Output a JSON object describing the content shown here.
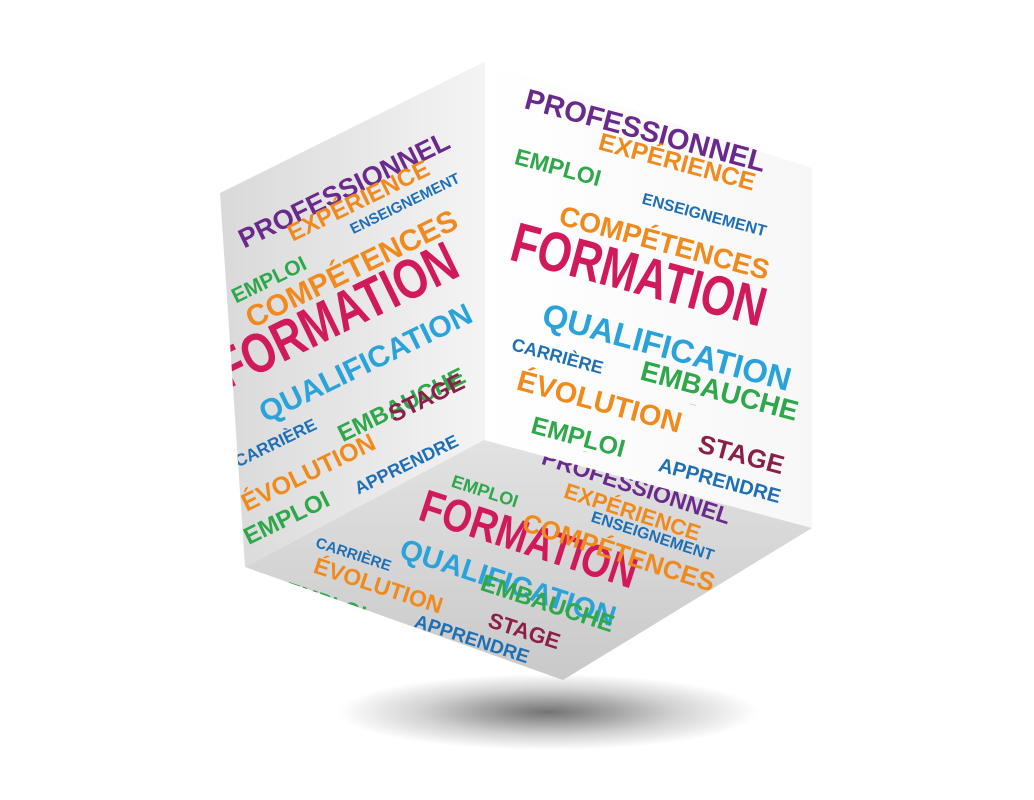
{
  "cube": {
    "colors": {
      "purple": "#6a2a8c",
      "orange": "#f08a1d",
      "green": "#2ea84a",
      "blue": "#1f6fb5",
      "magenta": "#d11a5b",
      "cyan": "#2aa3db",
      "maroon": "#8a1f4a"
    },
    "left_face": [
      {
        "text": "PROFESSIONNEL",
        "color": "purple"
      },
      {
        "text": "EXPÉRIENCE",
        "color": "orange"
      },
      {
        "text": "EMPLOI",
        "color": "green"
      },
      {
        "text": "ENSEIGNEMENT",
        "color": "blue"
      },
      {
        "text": "COMPÉTENCES",
        "color": "orange"
      },
      {
        "text": "FORMATION",
        "color": "magenta"
      },
      {
        "text": "QUALIFICATION",
        "color": "cyan"
      },
      {
        "text": "EMBAUCHE",
        "color": "green"
      },
      {
        "text": "CARRIÈRE",
        "color": "blue"
      },
      {
        "text": "STAGE",
        "color": "maroon"
      },
      {
        "text": "ÉVOLUTION",
        "color": "orange"
      },
      {
        "text": "APPRENDRE",
        "color": "blue"
      },
      {
        "text": "EMPLOI",
        "color": "green"
      }
    ],
    "right_face": [
      {
        "text": "PROFESSIONNEL",
        "color": "purple"
      },
      {
        "text": "EXPÉRIENCE",
        "color": "orange"
      },
      {
        "text": "EMPLOI",
        "color": "green"
      },
      {
        "text": "ENSEIGNEMENT",
        "color": "blue"
      },
      {
        "text": "COMPÉTENCES",
        "color": "orange"
      },
      {
        "text": "FORMATION",
        "color": "magenta"
      },
      {
        "text": "QUALIFICATION",
        "color": "cyan"
      },
      {
        "text": "CARRIÈRE",
        "color": "blue"
      },
      {
        "text": "EMBAUCHE",
        "color": "green"
      },
      {
        "text": "ÉVOLUTION",
        "color": "orange"
      },
      {
        "text": "EMBAUCHE",
        "color": "green"
      },
      {
        "text": "EMPLOI",
        "color": "green"
      },
      {
        "text": "STAGE",
        "color": "maroon"
      },
      {
        "text": "EMPLOI",
        "color": "green"
      },
      {
        "text": "APPRENDRE",
        "color": "blue"
      }
    ],
    "bottom_face": [
      {
        "text": "PROFESSIONNEL",
        "color": "purple"
      },
      {
        "text": "EMPLOI",
        "color": "green"
      },
      {
        "text": "EXPÉRIENCE",
        "color": "orange"
      },
      {
        "text": "ENSEIGNEMENT",
        "color": "blue"
      },
      {
        "text": "FORMATION",
        "color": "magenta"
      },
      {
        "text": "COMPÉTENCES",
        "color": "orange"
      },
      {
        "text": "CARRIÈRE",
        "color": "blue"
      },
      {
        "text": "QUALIFICATION",
        "color": "cyan"
      },
      {
        "text": "ÉVOLUTION",
        "color": "orange"
      },
      {
        "text": "EMBAUCHE",
        "color": "green"
      },
      {
        "text": "STAGE",
        "color": "maroon"
      },
      {
        "text": "EMPLOI",
        "color": "green"
      },
      {
        "text": "APPRENDRE",
        "color": "blue"
      }
    ]
  }
}
